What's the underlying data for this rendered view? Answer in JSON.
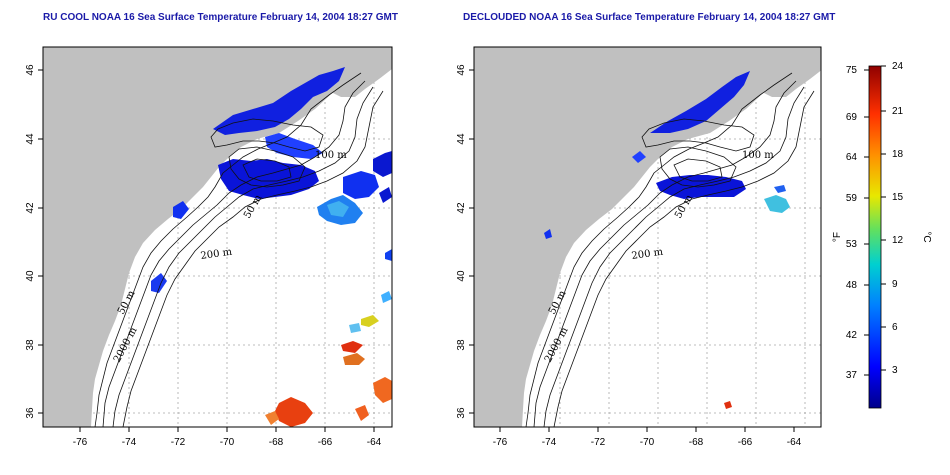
{
  "panels": [
    {
      "id": "left",
      "title": "RU COOL NOAA 16 Sea Surface Temperature February 14, 2004 18:27 GMT"
    },
    {
      "id": "right",
      "title": "DECLOUDED NOAA 16 Sea Surface Temperature February 14, 2004 18:27 GMT"
    }
  ],
  "map": {
    "lon_ticks": [
      "-76",
      "-74",
      "-72",
      "-70",
      "-68",
      "-66",
      "-64"
    ],
    "lat_ticks": [
      "36",
      "38",
      "40",
      "42",
      "44",
      "46"
    ],
    "contour_labels_left": [
      "100 m",
      "50 m",
      "200 m",
      "50 m",
      "2000 m"
    ],
    "contour_labels_right": [
      "100 m",
      "50 m",
      "200 m",
      "50 m",
      "2000 m"
    ],
    "colors": {
      "land": "#c0c0c0",
      "ocean": "#ffffff",
      "grid": "#9a9a9a"
    }
  },
  "colorbar": {
    "fahrenheit_ticks": [
      "75",
      "69",
      "64",
      "59",
      "53",
      "48",
      "42",
      "37"
    ],
    "celsius_ticks": [
      "24",
      "21",
      "18",
      "15",
      "12",
      "9",
      "6",
      "3"
    ],
    "fahrenheit_label": "°F",
    "celsius_label": "°C"
  }
}
